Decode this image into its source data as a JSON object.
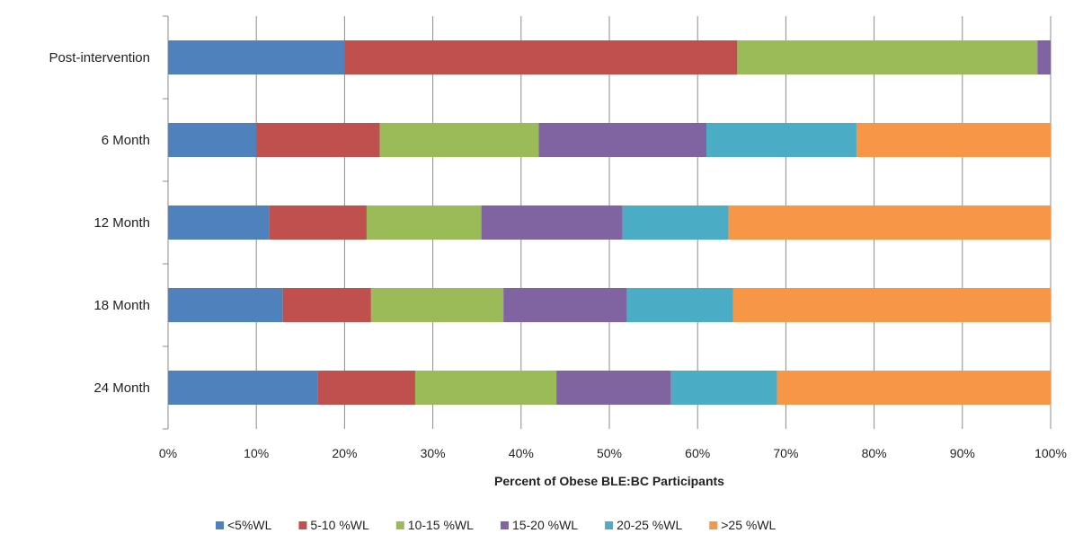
{
  "chart_data": {
    "type": "bar",
    "orientation": "horizontal",
    "stacked": true,
    "percent_stacked": true,
    "categories": [
      "Post-intervention",
      "6 Month",
      "12 Month",
      "18 Month",
      "24 Month"
    ],
    "series": [
      {
        "name": "<5%WL",
        "color": "#4f81bd",
        "values": [
          20,
          10,
          11.5,
          13,
          17
        ]
      },
      {
        "name": "5-10 %WL",
        "color": "#c0504d",
        "values": [
          44.5,
          14,
          11,
          10,
          11
        ]
      },
      {
        "name": "10-15 %WL",
        "color": "#9bbb59",
        "values": [
          34,
          18,
          13,
          15,
          16
        ]
      },
      {
        "name": "15-20 %WL",
        "color": "#8064a2",
        "values": [
          1.5,
          19,
          16,
          14,
          13
        ]
      },
      {
        "name": "20-25 %WL",
        "color": "#4bacc6",
        "values": [
          0,
          17,
          12,
          12,
          12
        ]
      },
      {
        "name": ">25 %WL",
        "color": "#f79646",
        "values": [
          0,
          22,
          36.5,
          36,
          31
        ]
      }
    ],
    "xlabel": "Percent of Obese BLE:BC Participants",
    "ylabel": "",
    "xlim": [
      0,
      100
    ],
    "x_ticks": [
      "0%",
      "10%",
      "20%",
      "30%",
      "40%",
      "50%",
      "60%",
      "70%",
      "80%",
      "90%",
      "100%"
    ],
    "grid": "vertical",
    "legend_position": "bottom"
  }
}
